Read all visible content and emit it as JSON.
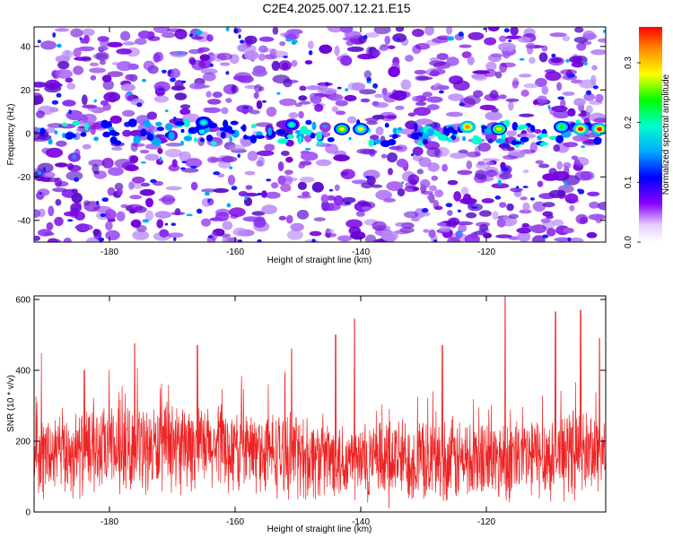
{
  "title": "C2E4.2025.007.12.21.E15",
  "colors": {
    "snr_line": "#ee2222",
    "scatter_dark": "#6a00d8",
    "background": "#ffffff"
  },
  "chart_data": [
    {
      "type": "heatmap",
      "xlabel": "Height of straight line (km)",
      "ylabel": "Frequency (Hz)",
      "xlim": [
        -192,
        -101
      ],
      "ylim": [
        -50,
        49
      ],
      "x_ticks": [
        "-180",
        "-160",
        "-140",
        "-120"
      ],
      "y_ticks": [
        "40",
        "20",
        "0",
        "-20",
        "-40"
      ],
      "colorbar": {
        "label": "Normalized spectral amplitude",
        "range": [
          0.0,
          0.36
        ],
        "ticks": [
          "0.0",
          "0.1",
          "0.2",
          "0.3"
        ],
        "colormap": [
          "#ffffff",
          "#8800ff",
          "#0000ff",
          "#00aaff",
          "#00ffcc",
          "#00ff00",
          "#ffff00",
          "#ff8800",
          "#ff0000"
        ]
      },
      "signal_band_hz": 0,
      "bright_spots": [
        {
          "x": -165,
          "y": 5,
          "value": 0.2
        },
        {
          "x": -151,
          "y": 4,
          "value": 0.19
        },
        {
          "x": -143,
          "y": 2,
          "value": 0.27
        },
        {
          "x": -140,
          "y": 2,
          "value": 0.25
        },
        {
          "x": -123,
          "y": 3,
          "value": 0.33
        },
        {
          "x": -118,
          "y": 2,
          "value": 0.29
        },
        {
          "x": -108,
          "y": 3,
          "value": 0.22
        },
        {
          "x": -105,
          "y": 2,
          "value": 0.35
        },
        {
          "x": -102,
          "y": 2,
          "value": 0.36
        }
      ],
      "grid": false,
      "legend": "colorbar-right"
    },
    {
      "type": "line",
      "xlabel": "Height of straight line (km)",
      "ylabel": "SNR (10 * v/v)",
      "xlim": [
        -192,
        -101
      ],
      "ylim": [
        0,
        610
      ],
      "x_ticks": [
        "-180",
        "-160",
        "-140",
        "-120"
      ],
      "y_ticks": [
        "0",
        "200",
        "400",
        "600"
      ],
      "baseline_mean": 155,
      "peaks": [
        {
          "x": -184,
          "y": 400
        },
        {
          "x": -176,
          "y": 475
        },
        {
          "x": -166,
          "y": 470
        },
        {
          "x": -151,
          "y": 460
        },
        {
          "x": -144,
          "y": 500
        },
        {
          "x": -141,
          "y": 545
        },
        {
          "x": -127,
          "y": 470
        },
        {
          "x": -117,
          "y": 610
        },
        {
          "x": -109,
          "y": 565
        },
        {
          "x": -105,
          "y": 570
        },
        {
          "x": -102,
          "y": 490
        }
      ],
      "grid": false,
      "legend": "none"
    }
  ]
}
